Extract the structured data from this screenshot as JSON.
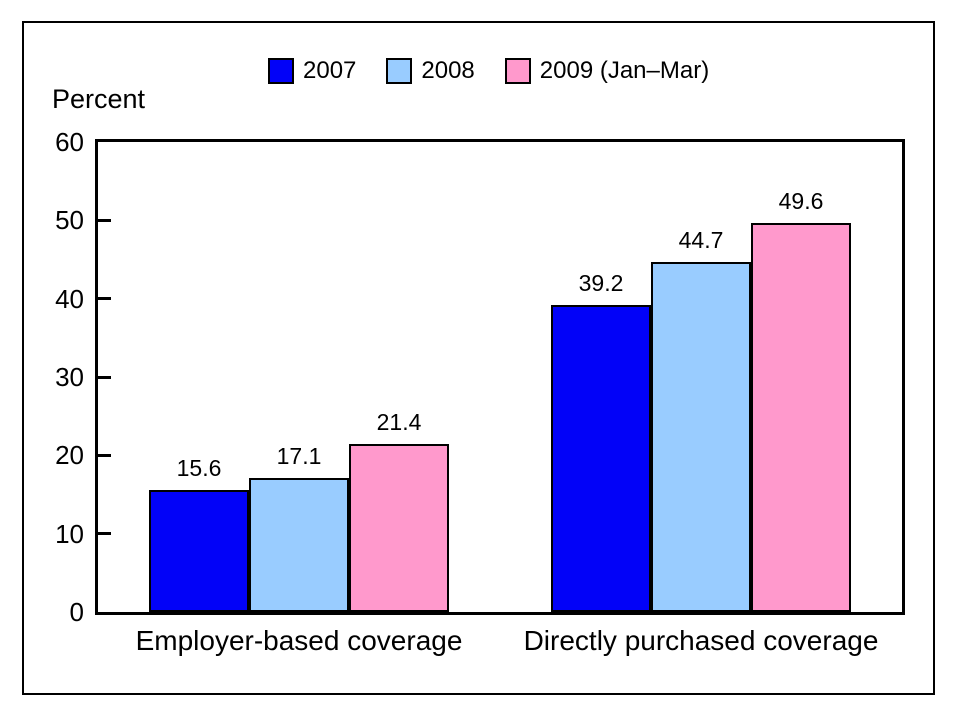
{
  "chart_data": {
    "type": "bar",
    "title": "",
    "ylabel": "Percent",
    "xlabel": "",
    "ylim": [
      0,
      60
    ],
    "ytick_step": 10,
    "grid": false,
    "legend_position": "top",
    "value_labels_shown": true,
    "categories": [
      "Employer-based coverage",
      "Directly purchased coverage"
    ],
    "series": [
      {
        "name": "2007",
        "color": "#0202F8",
        "values": [
          15.6,
          39.2
        ]
      },
      {
        "name": "2008",
        "color": "#99CCFF",
        "values": [
          17.1,
          44.7
        ]
      },
      {
        "name": "2009 (Jan–Mar)",
        "color": "#FF99CC",
        "values": [
          21.4,
          49.6
        ]
      }
    ]
  }
}
